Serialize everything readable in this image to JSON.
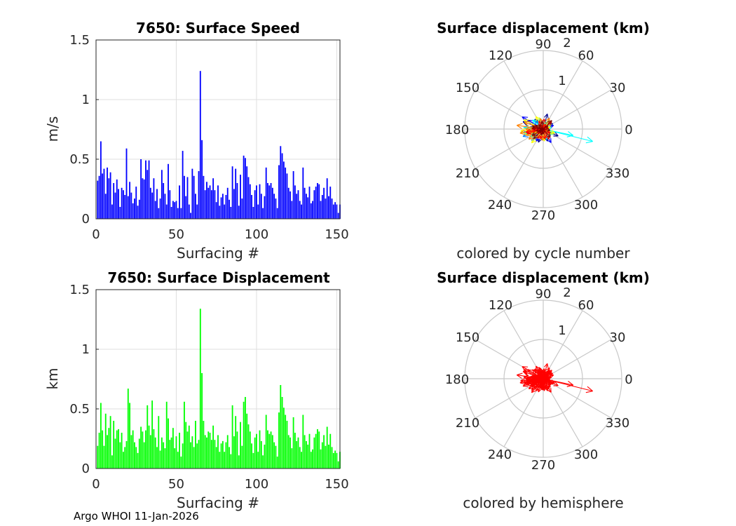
{
  "chart_data": [
    {
      "type": "bar",
      "title": "7650: Surface Speed",
      "xlabel": "Surfacing #",
      "ylabel": "m/s",
      "xlim": [
        0,
        152
      ],
      "ylim": [
        0,
        1.5
      ],
      "xticks": [
        "0",
        "50",
        "100",
        "150"
      ],
      "yticks": [
        "0",
        "0.5",
        "1",
        "1.5"
      ],
      "grid": true,
      "color": "#0000ff",
      "values": [
        0.32,
        0.36,
        0.65,
        0.38,
        0.42,
        0.21,
        0.43,
        0.34,
        0.39,
        0.12,
        0.3,
        0.22,
        0.33,
        0.25,
        0.1,
        0.26,
        0.24,
        0.2,
        0.59,
        0.19,
        0.31,
        0.22,
        0.13,
        0.17,
        0.27,
        0.11,
        0.16,
        0.5,
        0.34,
        0.33,
        0.49,
        0.41,
        0.49,
        0.26,
        0.22,
        0.34,
        0.15,
        0.25,
        0.09,
        0.17,
        0.41,
        0.3,
        0.21,
        0.12,
        0.46,
        0.24,
        0.1,
        0.15,
        0.14,
        0.15,
        0.09,
        0.28,
        0.09,
        0.57,
        0.36,
        0.19,
        0.35,
        0.12,
        0.05,
        0.42,
        0.36,
        0.21,
        0.12,
        0.4,
        1.24,
        0.66,
        0.36,
        0.24,
        0.31,
        0.26,
        0.28,
        0.24,
        0.34,
        0.24,
        0.14,
        0.28,
        0.11,
        0.18,
        0.21,
        0.12,
        0.2,
        0.26,
        0.16,
        0.1,
        0.44,
        0.25,
        0.42,
        0.3,
        0.11,
        0.37,
        0.17,
        0.53,
        0.51,
        0.44,
        0.35,
        0.29,
        0.2,
        0.1,
        0.24,
        0.28,
        0.12,
        0.29,
        0.21,
        0.09,
        0.19,
        0.43,
        0.3,
        0.28,
        0.3,
        0.26,
        0.21,
        0.17,
        0.09,
        0.45,
        0.61,
        0.55,
        0.48,
        0.43,
        0.38,
        0.26,
        0.23,
        0.15,
        0.4,
        0.28,
        0.21,
        0.24,
        0.15,
        0.12,
        0.43,
        0.26,
        0.21,
        0.18,
        0.27,
        0.13,
        0.15,
        0.24,
        0.27,
        0.3,
        0.29,
        0.15,
        0.2,
        0.26,
        0.17,
        0.34,
        0.19,
        0.27,
        0.17,
        0.12,
        0.14,
        0.12,
        0.05,
        0.12
      ]
    },
    {
      "type": "bar",
      "title": "7650: Surface Displacement",
      "xlabel": "Surfacing #",
      "ylabel": "km",
      "xlim": [
        0,
        152
      ],
      "ylim": [
        0,
        1.5
      ],
      "xticks": [
        "0",
        "50",
        "100",
        "150"
      ],
      "yticks": [
        "0",
        "0.5",
        "1",
        "1.5"
      ],
      "grid": true,
      "color": "#00ff00",
      "values": [
        0.19,
        0.3,
        0.55,
        0.32,
        0.19,
        0.46,
        0.28,
        0.34,
        0.44,
        0.11,
        0.4,
        0.25,
        0.32,
        0.33,
        0.22,
        0.3,
        0.14,
        0.18,
        0.23,
        0.67,
        0.55,
        0.28,
        0.32,
        0.22,
        0.18,
        0.13,
        0.25,
        0.35,
        0.31,
        0.22,
        0.32,
        0.53,
        0.36,
        0.28,
        0.57,
        0.33,
        0.26,
        0.18,
        0.44,
        0.15,
        0.26,
        0.22,
        0.17,
        0.56,
        0.42,
        0.24,
        0.26,
        0.34,
        0.17,
        0.27,
        0.14,
        0.3,
        0.1,
        0.21,
        0.56,
        0.39,
        0.31,
        0.36,
        0.22,
        0.27,
        0.18,
        0.4,
        0.21,
        0.24,
        1.34,
        0.8,
        0.4,
        0.28,
        0.26,
        0.31,
        0.3,
        0.24,
        0.36,
        0.24,
        0.18,
        0.28,
        0.14,
        0.21,
        0.23,
        0.14,
        0.22,
        0.28,
        0.18,
        0.12,
        0.53,
        0.27,
        0.44,
        0.31,
        0.11,
        0.39,
        0.19,
        0.56,
        0.6,
        0.46,
        0.37,
        0.31,
        0.21,
        0.13,
        0.26,
        0.29,
        0.14,
        0.32,
        0.23,
        0.11,
        0.2,
        0.45,
        0.32,
        0.29,
        0.31,
        0.28,
        0.22,
        0.19,
        0.1,
        0.47,
        0.7,
        0.6,
        0.51,
        0.45,
        0.4,
        0.28,
        0.26,
        0.17,
        0.43,
        0.3,
        0.23,
        0.26,
        0.18,
        0.14,
        0.45,
        0.28,
        0.23,
        0.2,
        0.29,
        0.14,
        0.16,
        0.26,
        0.29,
        0.33,
        0.31,
        0.16,
        0.22,
        0.28,
        0.19,
        0.35,
        0.2,
        0.29,
        0.18,
        0.13,
        0.15,
        0.13,
        0.06,
        0.14
      ]
    },
    {
      "type": "polar",
      "title": "Surface displacement (km)",
      "caption": "colored by cycle number",
      "r_max": 2,
      "r_ticks": [
        "1",
        "2"
      ],
      "angle_ticks": [
        "0",
        "30",
        "60",
        "90",
        "120",
        "150",
        "180",
        "210",
        "240",
        "270",
        "300",
        "330"
      ],
      "color_mode": "cycle",
      "colormap": [
        "#00008f",
        "#0000ff",
        "#0080ff",
        "#00ffff",
        "#80ff80",
        "#ffff00",
        "#ff8000",
        "#ff0000",
        "#800000"
      ],
      "vectors": [
        [
          0.28,
          30
        ],
        [
          0.42,
          -25
        ],
        [
          0.55,
          160
        ],
        [
          0.3,
          200
        ],
        [
          0.36,
          250
        ],
        [
          0.22,
          100
        ],
        [
          0.45,
          190
        ],
        [
          0.33,
          290
        ],
        [
          0.4,
          75
        ],
        [
          0.12,
          15
        ],
        [
          0.38,
          175
        ],
        [
          0.25,
          320
        ],
        [
          0.33,
          130
        ],
        [
          0.3,
          210
        ],
        [
          0.22,
          60
        ],
        [
          0.28,
          270
        ],
        [
          0.18,
          185
        ],
        [
          0.15,
          110
        ],
        [
          0.45,
          150
        ],
        [
          0.62,
          150
        ],
        [
          0.3,
          230
        ],
        [
          0.28,
          20
        ],
        [
          0.32,
          195
        ],
        [
          0.2,
          340
        ],
        [
          0.18,
          170
        ],
        [
          0.13,
          260
        ],
        [
          0.25,
          180
        ],
        [
          0.4,
          300
        ],
        [
          0.31,
          205
        ],
        [
          0.22,
          95
        ],
        [
          0.35,
          190
        ],
        [
          0.5,
          175
        ],
        [
          0.36,
          240
        ],
        [
          0.28,
          45
        ],
        [
          0.55,
          200
        ],
        [
          0.33,
          135
        ],
        [
          0.26,
          215
        ],
        [
          0.18,
          5
        ],
        [
          0.44,
          180
        ],
        [
          0.15,
          280
        ],
        [
          0.26,
          165
        ],
        [
          0.22,
          250
        ],
        [
          0.17,
          70
        ],
        [
          0.52,
          190
        ],
        [
          0.42,
          225
        ],
        [
          0.24,
          320
        ],
        [
          0.26,
          115
        ],
        [
          0.34,
          185
        ],
        [
          0.17,
          35
        ],
        [
          0.27,
          260
        ],
        [
          0.14,
          150
        ],
        [
          0.3,
          300
        ],
        [
          0.1,
          200
        ],
        [
          0.21,
          85
        ],
        [
          0.5,
          175
        ],
        [
          0.38,
          210
        ],
        [
          0.31,
          340
        ],
        [
          0.36,
          140
        ],
        [
          0.22,
          195
        ],
        [
          0.27,
          55
        ],
        [
          0.18,
          245
        ],
        [
          0.4,
          190
        ],
        [
          0.21,
          10
        ],
        [
          0.24,
          125
        ],
        [
          1.3,
          -14
        ],
        [
          0.78,
          -12
        ],
        [
          0.4,
          180
        ],
        [
          0.28,
          290
        ],
        [
          0.26,
          200
        ],
        [
          0.31,
          110
        ],
        [
          0.3,
          170
        ],
        [
          0.24,
          30
        ],
        [
          0.36,
          215
        ],
        [
          0.24,
          270
        ],
        [
          0.18,
          145
        ],
        [
          0.28,
          330
        ],
        [
          0.14,
          190
        ],
        [
          0.21,
          80
        ],
        [
          0.23,
          240
        ],
        [
          0.14,
          0
        ],
        [
          0.22,
          160
        ],
        [
          0.28,
          310
        ],
        [
          0.18,
          225
        ],
        [
          0.12,
          100
        ],
        [
          0.5,
          195
        ],
        [
          0.27,
          50
        ],
        [
          0.44,
          185
        ],
        [
          0.31,
          275
        ],
        [
          0.11,
          130
        ],
        [
          0.39,
          200
        ],
        [
          0.19,
          15
        ],
        [
          0.55,
          155
        ],
        [
          0.58,
          185
        ],
        [
          0.46,
          230
        ],
        [
          0.37,
          120
        ],
        [
          0.31,
          340
        ],
        [
          0.21,
          205
        ],
        [
          0.13,
          75
        ],
        [
          0.26,
          250
        ],
        [
          0.29,
          175
        ],
        [
          0.14,
          25
        ],
        [
          0.32,
          195
        ],
        [
          0.23,
          290
        ],
        [
          0.11,
          140
        ],
        [
          0.2,
          215
        ],
        [
          0.45,
          180
        ],
        [
          0.32,
          60
        ],
        [
          0.29,
          265
        ],
        [
          0.31,
          190
        ],
        [
          0.28,
          105
        ],
        [
          0.22,
          320
        ],
        [
          0.19,
          170
        ],
        [
          0.1,
          235
        ],
        [
          0.47,
          200
        ],
        [
          0.68,
          172
        ],
        [
          0.6,
          190
        ],
        [
          0.51,
          160
        ],
        [
          0.45,
          215
        ],
        [
          0.4,
          185
        ],
        [
          0.28,
          40
        ],
        [
          0.26,
          255
        ],
        [
          0.17,
          135
        ],
        [
          0.43,
          195
        ],
        [
          0.3,
          300
        ],
        [
          0.23,
          175
        ],
        [
          0.26,
          85
        ],
        [
          0.18,
          220
        ],
        [
          0.14,
          10
        ],
        [
          0.45,
          190
        ],
        [
          0.28,
          240
        ],
        [
          0.23,
          120
        ],
        [
          0.2,
          330
        ],
        [
          0.29,
          180
        ],
        [
          0.14,
          65
        ],
        [
          0.16,
          205
        ],
        [
          0.26,
          280
        ],
        [
          0.29,
          165
        ],
        [
          0.33,
          210
        ],
        [
          0.31,
          45
        ],
        [
          0.16,
          250
        ],
        [
          0.22,
          155
        ],
        [
          0.28,
          310
        ],
        [
          0.19,
          195
        ],
        [
          0.35,
          225
        ],
        [
          0.2,
          100
        ],
        [
          0.29,
          175
        ],
        [
          0.18,
          350
        ],
        [
          0.13,
          210
        ],
        [
          0.15,
          135
        ],
        [
          0.13,
          270
        ],
        [
          0.06,
          190
        ],
        [
          0.14,
          30
        ]
      ]
    },
    {
      "type": "polar",
      "title": "Surface displacement (km)",
      "caption": "colored by hemisphere",
      "r_max": 2,
      "r_ticks": [
        "1",
        "2"
      ],
      "angle_ticks": [
        "0",
        "30",
        "60",
        "90",
        "120",
        "150",
        "180",
        "210",
        "240",
        "270",
        "300",
        "330"
      ],
      "color_mode": "single",
      "color": "#ff0000"
    }
  ],
  "footer": "Argo WHOI 11-Jan-2026"
}
